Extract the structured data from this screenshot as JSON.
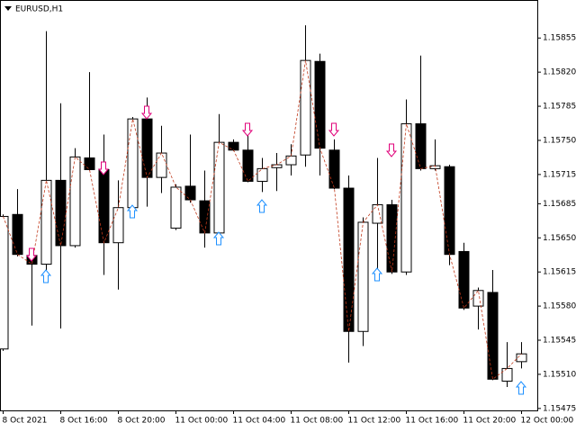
{
  "chart_data": {
    "type": "candlestick",
    "title": "EURUSD,H1",
    "categories": [
      "8 Oct 2021",
      null,
      null,
      null,
      "8 Oct 16:00",
      null,
      null,
      null,
      "8 Oct 20:00",
      null,
      null,
      null,
      "11 Oct 00:00",
      null,
      null,
      null,
      "11 Oct 04:00",
      null,
      null,
      null,
      "11 Oct 08:00",
      null,
      null,
      null,
      "11 Oct 12:00",
      null,
      null,
      null,
      "11 Oct 16:00",
      null,
      null,
      null,
      "11 Oct 20:00",
      null,
      null,
      null,
      "12 Oct 00:00"
    ],
    "open": [
      1.15536,
      1.15674,
      1.15632,
      1.15623,
      1.15709,
      1.15642,
      1.15732,
      1.1572,
      1.15645,
      1.15681,
      1.15772,
      1.15712,
      1.1566,
      1.15703,
      1.15688,
      1.15655,
      1.15748,
      1.1574,
      1.15708,
      1.15722,
      1.15725,
      1.15735,
      1.15831,
      1.1574,
      1.15701,
      1.15554,
      1.15665,
      1.15684,
      1.15615,
      1.15767,
      1.15721,
      1.15723,
      1.15636,
      1.1558,
      1.15594,
      1.15503,
      1.15523
    ],
    "high": [
      1.15674,
      1.157,
      1.15636,
      1.15862,
      1.15788,
      1.15742,
      1.1582,
      1.15756,
      1.15709,
      1.15774,
      1.15794,
      1.15765,
      1.15705,
      1.15756,
      1.15719,
      1.15777,
      1.15751,
      1.15765,
      1.15732,
      1.15737,
      1.15746,
      1.15868,
      1.15839,
      1.15751,
      1.15714,
      1.15671,
      1.15732,
      1.15689,
      1.15792,
      1.15837,
      1.15751,
      1.15725,
      1.15645,
      1.15599,
      1.15617,
      1.15543,
      1.15543
    ],
    "low": [
      1.15534,
      1.15631,
      1.1556,
      1.15617,
      1.15557,
      1.1564,
      1.15719,
      1.15612,
      1.15597,
      1.15672,
      1.15682,
      1.15696,
      1.15658,
      1.15686,
      1.1564,
      1.15652,
      1.15739,
      1.15707,
      1.15697,
      1.15698,
      1.15714,
      1.15723,
      1.15714,
      1.157,
      1.15522,
      1.15539,
      1.15617,
      1.15613,
      1.15612,
      1.15719,
      1.15719,
      1.15622,
      1.15576,
      1.15556,
      1.15504,
      1.15497,
      1.15516
    ],
    "close": [
      1.15672,
      1.15633,
      1.15623,
      1.15709,
      1.15642,
      1.15733,
      1.1572,
      1.15645,
      1.15681,
      1.15772,
      1.15712,
      1.15737,
      1.15702,
      1.15689,
      1.15655,
      1.15748,
      1.1574,
      1.15708,
      1.15721,
      1.15725,
      1.15734,
      1.15832,
      1.15742,
      1.15701,
      1.15554,
      1.15666,
      1.15684,
      1.15615,
      1.15767,
      1.15721,
      1.15724,
      1.15633,
      1.15578,
      1.15596,
      1.15505,
      1.15516,
      1.15531
    ],
    "ylim": [
      1.15473,
      1.15894
    ],
    "yticks": [
      1.15855,
      {
        "value": 1.1582,
        "label": "1.15820"
      },
      1.15785,
      {
        "value": 1.1575,
        "label": "1.15750"
      },
      1.15715,
      1.15685,
      {
        "value": 1.1565,
        "label": "1.15650"
      },
      1.15615,
      {
        "value": 1.1558,
        "label": "1.15580"
      },
      1.15545,
      {
        "value": 1.1551,
        "label": "1.15510"
      },
      1.15475
    ],
    "up_color": "#ffffff",
    "down_color": "#000000",
    "line_color": "#c0391b"
  }
}
